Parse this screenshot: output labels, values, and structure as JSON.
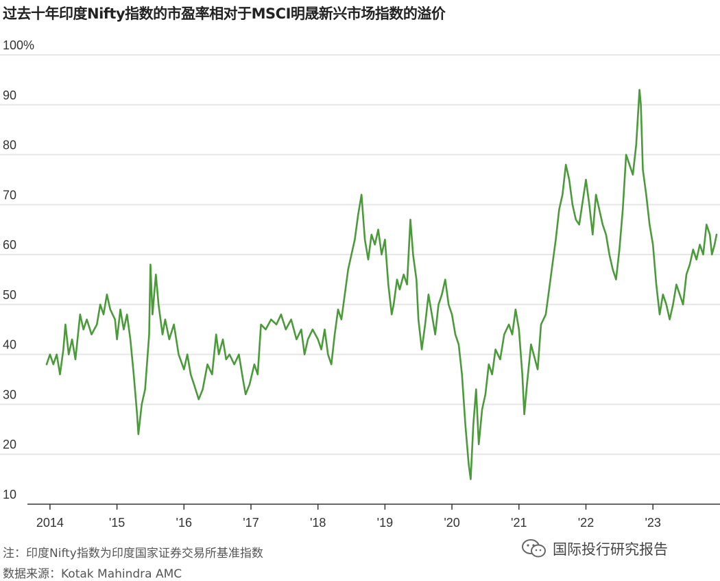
{
  "chart_data": {
    "type": "line",
    "title": "过去十年印度Nifty指数的市盈率相对于MSCI明晟新兴市场指数的溢价",
    "xlabel": "",
    "ylabel": "",
    "ylim": [
      10,
      100
    ],
    "y_ticks": [
      {
        "value": 100,
        "label": "100%"
      },
      {
        "value": 90,
        "label": "90"
      },
      {
        "value": 80,
        "label": "80"
      },
      {
        "value": 70,
        "label": "70"
      },
      {
        "value": 60,
        "label": "60"
      },
      {
        "value": 50,
        "label": "50"
      },
      {
        "value": 40,
        "label": "40"
      },
      {
        "value": 30,
        "label": "30"
      },
      {
        "value": 20,
        "label": "20"
      },
      {
        "value": 10,
        "label": "10"
      }
    ],
    "xlim": [
      2013.95,
      2023.95
    ],
    "x_ticks": [
      {
        "value": 2014,
        "label": "2014"
      },
      {
        "value": 2015,
        "label": "'15"
      },
      {
        "value": 2016,
        "label": "'16"
      },
      {
        "value": 2017,
        "label": "'17"
      },
      {
        "value": 2018,
        "label": "'18"
      },
      {
        "value": 2019,
        "label": "'19"
      },
      {
        "value": 2020,
        "label": "'20"
      },
      {
        "value": 2021,
        "label": "'21"
      },
      {
        "value": 2022,
        "label": "'22"
      },
      {
        "value": 2023,
        "label": "'23"
      }
    ],
    "grid": true,
    "legend": "none",
    "series": [
      {
        "color": "#4a9a3a",
        "points": [
          [
            2013.95,
            38
          ],
          [
            2014.0,
            40
          ],
          [
            2014.05,
            38
          ],
          [
            2014.1,
            40
          ],
          [
            2014.15,
            36
          ],
          [
            2014.2,
            41
          ],
          [
            2014.23,
            46
          ],
          [
            2014.28,
            40
          ],
          [
            2014.33,
            43
          ],
          [
            2014.38,
            39
          ],
          [
            2014.45,
            48
          ],
          [
            2014.5,
            45
          ],
          [
            2014.55,
            47
          ],
          [
            2014.62,
            44
          ],
          [
            2014.7,
            46
          ],
          [
            2014.75,
            50
          ],
          [
            2014.8,
            48
          ],
          [
            2014.85,
            52
          ],
          [
            2014.9,
            49
          ],
          [
            2014.97,
            47
          ],
          [
            2015.0,
            43
          ],
          [
            2015.05,
            49
          ],
          [
            2015.1,
            45
          ],
          [
            2015.15,
            48
          ],
          [
            2015.2,
            43
          ],
          [
            2015.25,
            36
          ],
          [
            2015.3,
            28
          ],
          [
            2015.32,
            24
          ],
          [
            2015.37,
            30
          ],
          [
            2015.42,
            33
          ],
          [
            2015.48,
            44
          ],
          [
            2015.5,
            58
          ],
          [
            2015.53,
            48
          ],
          [
            2015.58,
            56
          ],
          [
            2015.62,
            50
          ],
          [
            2015.68,
            44
          ],
          [
            2015.72,
            47
          ],
          [
            2015.78,
            43
          ],
          [
            2015.85,
            46
          ],
          [
            2015.92,
            40
          ],
          [
            2016.0,
            37
          ],
          [
            2016.05,
            40
          ],
          [
            2016.1,
            36
          ],
          [
            2016.15,
            34
          ],
          [
            2016.22,
            31
          ],
          [
            2016.28,
            33
          ],
          [
            2016.35,
            38
          ],
          [
            2016.42,
            36
          ],
          [
            2016.48,
            44
          ],
          [
            2016.52,
            40
          ],
          [
            2016.58,
            43
          ],
          [
            2016.63,
            39
          ],
          [
            2016.68,
            40
          ],
          [
            2016.75,
            38
          ],
          [
            2016.82,
            40
          ],
          [
            2016.88,
            35
          ],
          [
            2016.92,
            32
          ],
          [
            2016.98,
            34
          ],
          [
            2017.05,
            38
          ],
          [
            2017.1,
            36
          ],
          [
            2017.15,
            46
          ],
          [
            2017.22,
            45
          ],
          [
            2017.3,
            47
          ],
          [
            2017.38,
            46
          ],
          [
            2017.45,
            48
          ],
          [
            2017.52,
            45
          ],
          [
            2017.6,
            47
          ],
          [
            2017.68,
            43
          ],
          [
            2017.75,
            45
          ],
          [
            2017.8,
            40
          ],
          [
            2017.85,
            43
          ],
          [
            2017.92,
            45
          ],
          [
            2018.0,
            43
          ],
          [
            2018.05,
            41
          ],
          [
            2018.1,
            45
          ],
          [
            2018.15,
            40
          ],
          [
            2018.2,
            38
          ],
          [
            2018.25,
            44
          ],
          [
            2018.3,
            49
          ],
          [
            2018.35,
            47
          ],
          [
            2018.4,
            52
          ],
          [
            2018.45,
            57
          ],
          [
            2018.5,
            60
          ],
          [
            2018.55,
            63
          ],
          [
            2018.6,
            68
          ],
          [
            2018.65,
            72
          ],
          [
            2018.7,
            63
          ],
          [
            2018.75,
            59
          ],
          [
            2018.8,
            64
          ],
          [
            2018.85,
            62
          ],
          [
            2018.9,
            65
          ],
          [
            2018.95,
            60
          ],
          [
            2019.0,
            63
          ],
          [
            2019.05,
            54
          ],
          [
            2019.1,
            48
          ],
          [
            2019.13,
            50
          ],
          [
            2019.18,
            55
          ],
          [
            2019.22,
            53
          ],
          [
            2019.28,
            56
          ],
          [
            2019.33,
            54
          ],
          [
            2019.38,
            67
          ],
          [
            2019.42,
            60
          ],
          [
            2019.47,
            55
          ],
          [
            2019.5,
            47
          ],
          [
            2019.55,
            41
          ],
          [
            2019.6,
            46
          ],
          [
            2019.65,
            52
          ],
          [
            2019.7,
            48
          ],
          [
            2019.75,
            44
          ],
          [
            2019.8,
            50
          ],
          [
            2019.85,
            52
          ],
          [
            2019.9,
            55
          ],
          [
            2019.95,
            50
          ],
          [
            2020.0,
            48
          ],
          [
            2020.05,
            44
          ],
          [
            2020.1,
            42
          ],
          [
            2020.15,
            36
          ],
          [
            2020.2,
            26
          ],
          [
            2020.25,
            18
          ],
          [
            2020.28,
            15
          ],
          [
            2020.32,
            26
          ],
          [
            2020.36,
            33
          ],
          [
            2020.4,
            22
          ],
          [
            2020.45,
            29
          ],
          [
            2020.5,
            32
          ],
          [
            2020.55,
            38
          ],
          [
            2020.6,
            36
          ],
          [
            2020.65,
            41
          ],
          [
            2020.72,
            39
          ],
          [
            2020.78,
            44
          ],
          [
            2020.85,
            46
          ],
          [
            2020.9,
            44
          ],
          [
            2020.95,
            49
          ],
          [
            2021.0,
            45
          ],
          [
            2021.05,
            36
          ],
          [
            2021.08,
            28
          ],
          [
            2021.12,
            34
          ],
          [
            2021.18,
            42
          ],
          [
            2021.22,
            40
          ],
          [
            2021.28,
            37
          ],
          [
            2021.33,
            46
          ],
          [
            2021.4,
            48
          ],
          [
            2021.45,
            53
          ],
          [
            2021.5,
            58
          ],
          [
            2021.55,
            63
          ],
          [
            2021.6,
            69
          ],
          [
            2021.65,
            72
          ],
          [
            2021.7,
            78
          ],
          [
            2021.75,
            75
          ],
          [
            2021.8,
            70
          ],
          [
            2021.85,
            67
          ],
          [
            2021.9,
            66
          ],
          [
            2022.0,
            75
          ],
          [
            2022.05,
            70
          ],
          [
            2022.1,
            64
          ],
          [
            2022.15,
            72
          ],
          [
            2022.2,
            69
          ],
          [
            2022.25,
            66
          ],
          [
            2022.3,
            64
          ],
          [
            2022.35,
            60
          ],
          [
            2022.4,
            57
          ],
          [
            2022.45,
            55
          ],
          [
            2022.5,
            61
          ],
          [
            2022.55,
            69
          ],
          [
            2022.6,
            80
          ],
          [
            2022.65,
            78
          ],
          [
            2022.7,
            76
          ],
          [
            2022.75,
            82
          ],
          [
            2022.8,
            93
          ],
          [
            2022.82,
            90
          ],
          [
            2022.85,
            77
          ],
          [
            2022.9,
            72
          ],
          [
            2022.95,
            66
          ],
          [
            2023.0,
            62
          ],
          [
            2023.05,
            54
          ],
          [
            2023.1,
            48
          ],
          [
            2023.15,
            52
          ],
          [
            2023.2,
            50
          ],
          [
            2023.25,
            47
          ],
          [
            2023.3,
            50
          ],
          [
            2023.35,
            54
          ],
          [
            2023.4,
            52
          ],
          [
            2023.45,
            50
          ],
          [
            2023.5,
            56
          ],
          [
            2023.55,
            58
          ],
          [
            2023.6,
            61
          ],
          [
            2023.65,
            59
          ],
          [
            2023.7,
            62
          ],
          [
            2023.75,
            60
          ],
          [
            2023.8,
            66
          ],
          [
            2023.85,
            64
          ],
          [
            2023.88,
            60
          ],
          [
            2023.92,
            62
          ],
          [
            2023.95,
            64
          ]
        ]
      }
    ]
  },
  "notes": {
    "line1": "注：印度Nifty指数为印度国家证券交易所基准指数",
    "line2": "数据来源：Kotak Mahindra AMC"
  },
  "watermark": {
    "icon": "wechat-icon",
    "text": "国际投行研究报告"
  }
}
